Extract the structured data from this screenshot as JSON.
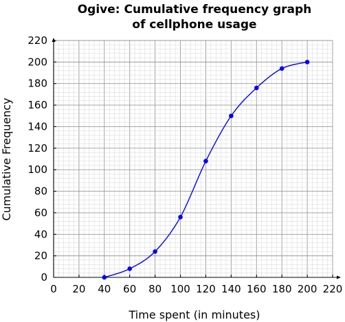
{
  "chart_data": {
    "type": "line",
    "title_lines": [
      "Ogive: Cumulative frequency graph",
      "of cellphone usage"
    ],
    "xlabel": "Time spent (in minutes)",
    "ylabel": "Cumulative Frequency",
    "xlim": [
      0,
      220
    ],
    "ylim": [
      0,
      220
    ],
    "x_ticks": [
      0,
      20,
      40,
      60,
      80,
      100,
      120,
      140,
      160,
      180,
      200,
      220
    ],
    "y_ticks": [
      0,
      20,
      40,
      60,
      80,
      100,
      120,
      140,
      160,
      180,
      200,
      220
    ],
    "grid": true,
    "series": [
      {
        "color": "#0000ff",
        "x": [
          40,
          60,
          80,
          100,
          120,
          140,
          160,
          180,
          200
        ],
        "y": [
          0,
          8,
          24,
          56,
          108,
          150,
          176,
          194,
          200
        ]
      }
    ]
  }
}
